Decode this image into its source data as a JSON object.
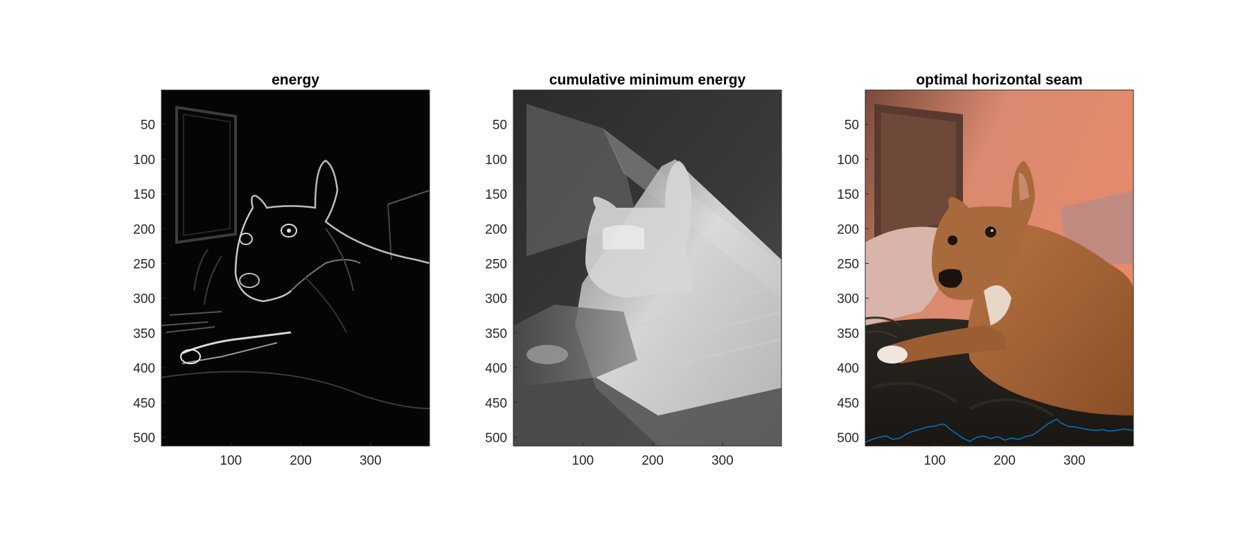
{
  "figure": {
    "background": "#ffffff"
  },
  "chart_data": [
    {
      "type": "heatmap",
      "title": "energy",
      "xlabel": "",
      "ylabel": "",
      "xlim": [
        0.5,
        384.5
      ],
      "ylim": [
        0.5,
        512.5
      ],
      "y_reversed": true,
      "xticks": [
        100,
        200,
        300
      ],
      "yticks": [
        50,
        100,
        150,
        200,
        250,
        300,
        350,
        400,
        450,
        500
      ],
      "colormap": "gray",
      "image_content": "grayscale gradient-magnitude energy map of a dog lying on a couch"
    },
    {
      "type": "heatmap",
      "title": "cumulative minimum energy",
      "xlabel": "",
      "ylabel": "",
      "xlim": [
        0.5,
        384.5
      ],
      "ylim": [
        0.5,
        512.5
      ],
      "y_reversed": true,
      "xticks": [
        100,
        200,
        300
      ],
      "yticks": [
        50,
        100,
        150,
        200,
        250,
        300,
        350,
        400,
        450,
        500
      ],
      "colormap": "gray",
      "image_content": "grayscale cumulative minimum energy map (horizontal seam dynamic programming)"
    },
    {
      "type": "line",
      "title": "optimal horizontal seam",
      "xlabel": "",
      "ylabel": "",
      "xlim": [
        0.5,
        384.5
      ],
      "ylim": [
        0.5,
        512.5
      ],
      "y_reversed": true,
      "xticks": [
        100,
        200,
        300
      ],
      "yticks": [
        50,
        100,
        150,
        200,
        250,
        300,
        350,
        400,
        450,
        500
      ],
      "background_image": "color photo of a tan dog lying on a dark couch in pink light",
      "series": [
        {
          "color": "#0072BD",
          "x": [
            1,
            10,
            20,
            30,
            40,
            50,
            60,
            70,
            80,
            90,
            100,
            110,
            115,
            120,
            130,
            140,
            150,
            160,
            170,
            180,
            190,
            200,
            210,
            220,
            230,
            240,
            250,
            260,
            270,
            275,
            280,
            290,
            300,
            310,
            320,
            330,
            340,
            350,
            360,
            370,
            384
          ],
          "y": [
            507,
            503,
            500,
            498,
            503,
            501,
            495,
            491,
            488,
            485,
            484,
            481,
            482,
            487,
            494,
            501,
            506,
            500,
            498,
            502,
            499,
            504,
            501,
            503,
            499,
            497,
            490,
            482,
            476,
            474,
            479,
            484,
            485,
            487,
            489,
            490,
            489,
            491,
            490,
            488,
            490
          ]
        }
      ]
    }
  ]
}
